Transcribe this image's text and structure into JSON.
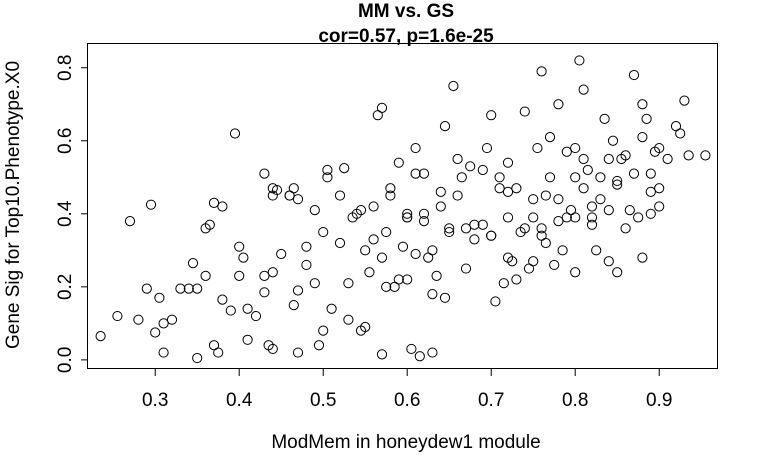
{
  "chart_data": {
    "type": "scatter",
    "title": "MM vs. GS",
    "subtitle": "cor=0.57, p=1.6e-25",
    "xlabel": "ModMem in honeydew1 module",
    "ylabel": "Gene Sig for Top10.Phenotype.X0",
    "xlim": [
      0.22,
      0.97
    ],
    "ylim": [
      -0.025,
      0.865
    ],
    "x_ticks": [
      "0.3",
      "0.4",
      "0.5",
      "0.6",
      "0.7",
      "0.8",
      "0.9"
    ],
    "y_ticks": [
      "0.0",
      "0.2",
      "0.4",
      "0.6",
      "0.8"
    ],
    "grid": false,
    "legend": "none",
    "marker": "open-circle",
    "colors": {
      "points": "#000000",
      "axes": "#000000",
      "background": "#ffffff"
    },
    "x": [
      0.235,
      0.255,
      0.27,
      0.28,
      0.29,
      0.295,
      0.3,
      0.305,
      0.31,
      0.33,
      0.34,
      0.345,
      0.35,
      0.35,
      0.36,
      0.365,
      0.37,
      0.375,
      0.38,
      0.38,
      0.39,
      0.395,
      0.4,
      0.4,
      0.405,
      0.41,
      0.43,
      0.43,
      0.435,
      0.44,
      0.44,
      0.44,
      0.445,
      0.45,
      0.46,
      0.465,
      0.465,
      0.47,
      0.47,
      0.48,
      0.48,
      0.49,
      0.495,
      0.5,
      0.505,
      0.505,
      0.51,
      0.52,
      0.525,
      0.53,
      0.535,
      0.54,
      0.545,
      0.545,
      0.55,
      0.555,
      0.56,
      0.565,
      0.57,
      0.57,
      0.575,
      0.575,
      0.58,
      0.585,
      0.59,
      0.595,
      0.6,
      0.6,
      0.6,
      0.605,
      0.61,
      0.61,
      0.615,
      0.62,
      0.62,
      0.625,
      0.63,
      0.635,
      0.64,
      0.645,
      0.645,
      0.65,
      0.655,
      0.66,
      0.665,
      0.67,
      0.675,
      0.68,
      0.69,
      0.695,
      0.7,
      0.7,
      0.705,
      0.71,
      0.715,
      0.72,
      0.72,
      0.725,
      0.73,
      0.735,
      0.74,
      0.745,
      0.75,
      0.755,
      0.76,
      0.765,
      0.765,
      0.77,
      0.775,
      0.78,
      0.785,
      0.79,
      0.795,
      0.8,
      0.8,
      0.8,
      0.805,
      0.81,
      0.81,
      0.815,
      0.82,
      0.825,
      0.83,
      0.835,
      0.84,
      0.845,
      0.85,
      0.855,
      0.86,
      0.865,
      0.87,
      0.875,
      0.88,
      0.885,
      0.89,
      0.89,
      0.895,
      0.9,
      0.9,
      0.91,
      0.92,
      0.93,
      0.935,
      0.955,
      0.31,
      0.32,
      0.36,
      0.37,
      0.42,
      0.44,
      0.46,
      0.5,
      0.52,
      0.56,
      0.58,
      0.62,
      0.64,
      0.66,
      0.68,
      0.71,
      0.73,
      0.75,
      0.77,
      0.79,
      0.81,
      0.83,
      0.85,
      0.87,
      0.89,
      0.41,
      0.43,
      0.47,
      0.49,
      0.53,
      0.55,
      0.59,
      0.61,
      0.63,
      0.67,
      0.69,
      0.72,
      0.74,
      0.76,
      0.78,
      0.82,
      0.84,
      0.86,
      0.88,
      0.6,
      0.65,
      0.7,
      0.75,
      0.8,
      0.85,
      0.72,
      0.76,
      0.78,
      0.82,
      0.84,
      0.88,
      0.9,
      0.925,
      0.57,
      0.63
    ],
    "y": [
      0.065,
      0.12,
      0.38,
      0.11,
      0.195,
      0.425,
      0.075,
      0.17,
      0.02,
      0.195,
      0.195,
      0.265,
      0.195,
      0.005,
      0.23,
      0.37,
      0.04,
      0.02,
      0.42,
      0.165,
      0.135,
      0.62,
      0.31,
      0.23,
      0.28,
      0.055,
      0.51,
      0.185,
      0.04,
      0.45,
      0.24,
      0.03,
      0.465,
      0.29,
      0.45,
      0.47,
      0.15,
      0.19,
      0.02,
      0.26,
      0.31,
      0.41,
      0.04,
      0.08,
      0.5,
      0.52,
      0.14,
      0.32,
      0.525,
      0.21,
      0.39,
      0.4,
      0.08,
      0.41,
      0.09,
      0.24,
      0.42,
      0.67,
      0.28,
      0.015,
      0.2,
      0.35,
      0.47,
      0.2,
      0.54,
      0.31,
      0.22,
      0.39,
      0.4,
      0.03,
      0.58,
      0.51,
      0.01,
      0.38,
      0.4,
      0.28,
      0.02,
      0.23,
      0.46,
      0.64,
      0.17,
      0.36,
      0.75,
      0.55,
      0.5,
      0.25,
      0.53,
      0.33,
      0.37,
      0.58,
      0.67,
      0.34,
      0.16,
      0.47,
      0.21,
      0.54,
      0.46,
      0.27,
      0.22,
      0.35,
      0.68,
      0.25,
      0.39,
      0.58,
      0.79,
      0.45,
      0.32,
      0.61,
      0.26,
      0.7,
      0.3,
      0.39,
      0.41,
      0.58,
      0.5,
      0.24,
      0.82,
      0.74,
      0.55,
      0.52,
      0.37,
      0.3,
      0.44,
      0.66,
      0.41,
      0.6,
      0.48,
      0.55,
      0.36,
      0.41,
      0.78,
      0.39,
      0.7,
      0.66,
      0.4,
      0.51,
      0.57,
      0.47,
      0.42,
      0.55,
      0.64,
      0.71,
      0.56,
      0.56,
      0.1,
      0.11,
      0.36,
      0.43,
      0.12,
      0.47,
      0.45,
      0.35,
      0.45,
      0.33,
      0.45,
      0.51,
      0.42,
      0.45,
      0.37,
      0.5,
      0.47,
      0.44,
      0.5,
      0.57,
      0.47,
      0.5,
      0.49,
      0.51,
      0.46,
      0.14,
      0.23,
      0.44,
      0.21,
      0.11,
      0.3,
      0.22,
      0.29,
      0.3,
      0.36,
      0.52,
      0.39,
      0.36,
      0.36,
      0.38,
      0.39,
      0.55,
      0.56,
      0.61,
      0.39,
      0.35,
      0.34,
      0.27,
      0.39,
      0.24,
      0.28,
      0.34,
      0.44,
      0.42,
      0.27,
      0.28,
      0.58,
      0.62,
      0.69,
      0.18
    ]
  }
}
